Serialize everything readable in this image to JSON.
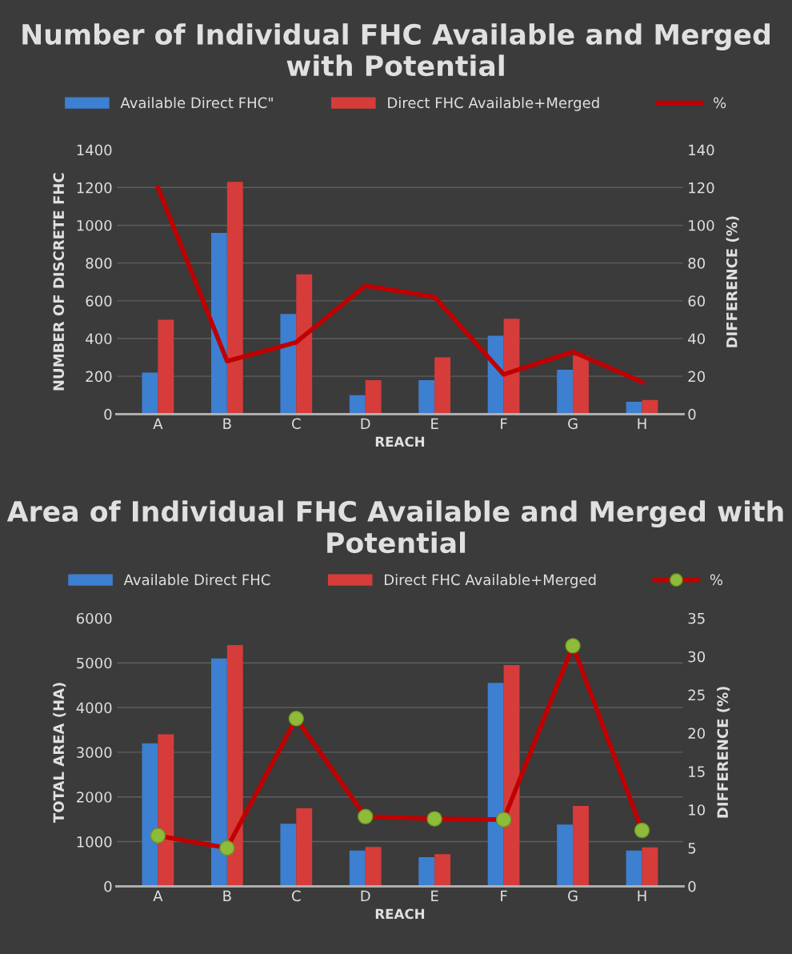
{
  "chart_data": [
    {
      "type": "bar",
      "title": "Number of Individual FHC Available and Merged with Potential",
      "xlabel": "REACH",
      "ylabel": "NUMBER OF DISCRETE FHC",
      "y2label": "DIFFERENCE (%)",
      "categories": [
        "A",
        "B",
        "C",
        "D",
        "E",
        "F",
        "G",
        "H"
      ],
      "series": [
        {
          "name": "Available Direct FHC\"",
          "color": "#3d7fd1",
          "values": [
            220,
            960,
            530,
            100,
            180,
            415,
            235,
            65
          ]
        },
        {
          "name": "Direct FHC Available+Merged",
          "color": "#d63c3a",
          "values": [
            500,
            1230,
            740,
            180,
            300,
            505,
            310,
            75
          ]
        },
        {
          "name": "%",
          "type": "line",
          "axis": "y2",
          "color": "#c00000",
          "values": [
            120,
            28,
            38,
            68,
            62,
            21,
            33,
            17
          ]
        }
      ],
      "ylim": [
        0,
        1400
      ],
      "yticks": [
        0,
        200,
        400,
        600,
        800,
        1000,
        1200,
        1400
      ],
      "y2lim": [
        0,
        140
      ],
      "y2ticks": [
        0,
        20,
        40,
        60,
        80,
        100,
        120,
        140
      ],
      "grid": "y",
      "legend": "top"
    },
    {
      "type": "bar",
      "title": "Area of Individual FHC Available and Merged with Potential",
      "xlabel": "REACH",
      "ylabel": "TOTAL AREA (HA)",
      "y2label": "DIFFERENCE (%)",
      "categories": [
        "A",
        "B",
        "C",
        "D",
        "E",
        "F",
        "G",
        "H"
      ],
      "series": [
        {
          "name": "Available Direct FHC",
          "color": "#3d7fd1",
          "values": [
            3200,
            5100,
            1400,
            800,
            650,
            4550,
            1380,
            800
          ]
        },
        {
          "name": "Direct FHC Available+Merged",
          "color": "#d63c3a",
          "values": [
            3400,
            5400,
            1750,
            880,
            720,
            4950,
            1800,
            870
          ]
        },
        {
          "name": "%",
          "type": "line",
          "axis": "y2",
          "color": "#c00000",
          "marker": "circle",
          "values": [
            6.6,
            5.0,
            21.9,
            9.1,
            8.8,
            8.7,
            31.4,
            7.3
          ]
        }
      ],
      "ylim": [
        0,
        6000
      ],
      "yticks": [
        0,
        1000,
        2000,
        3000,
        4000,
        5000,
        6000
      ],
      "y2lim": [
        0,
        35
      ],
      "y2ticks": [
        0,
        5,
        10,
        15,
        20,
        25,
        30,
        35
      ],
      "grid": "y",
      "legend": "top"
    }
  ]
}
